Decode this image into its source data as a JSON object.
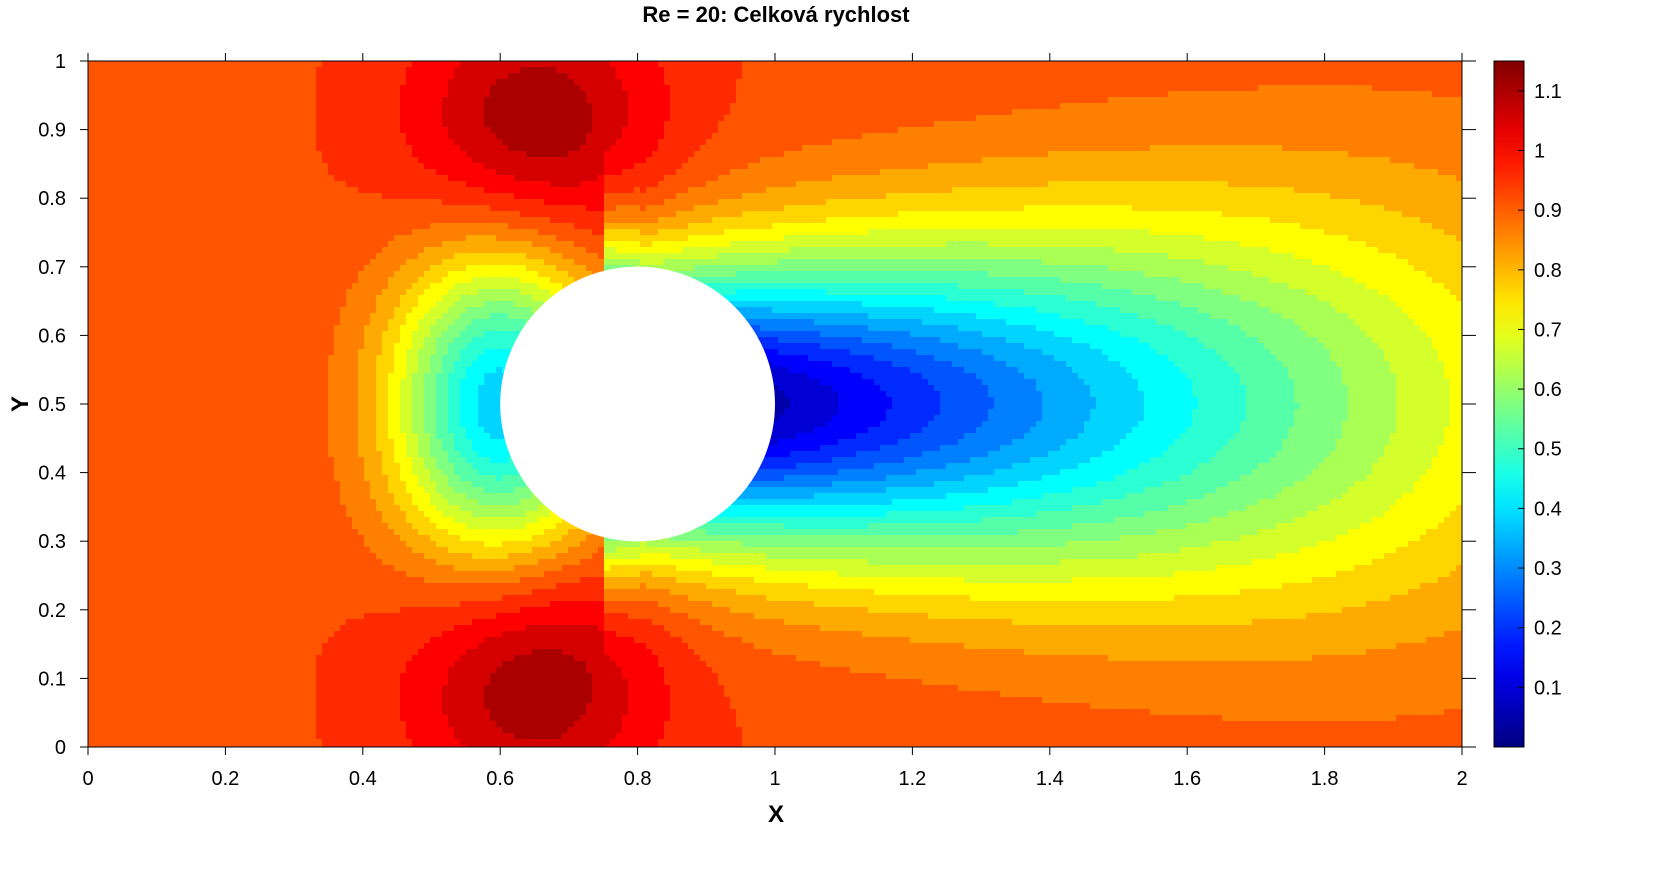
{
  "chart_data": {
    "type": "heatmap",
    "title": "Re = 20: Celková rychlost",
    "xlabel": "X",
    "ylabel": "Y",
    "xlim": [
      0,
      2
    ],
    "ylim": [
      0,
      1
    ],
    "x_ticks": [
      "0",
      "0.2",
      "0.4",
      "0.6",
      "0.8",
      "1",
      "1.2",
      "1.4",
      "1.6",
      "1.8",
      "2"
    ],
    "y_ticks": [
      "0",
      "0.1",
      "0.2",
      "0.3",
      "0.4",
      "0.5",
      "0.6",
      "0.7",
      "0.8",
      "0.9",
      "1"
    ],
    "colorbar": {
      "range": [
        0,
        1.15
      ],
      "ticks": [
        "0.1",
        "0.2",
        "0.3",
        "0.4",
        "0.5",
        "0.6",
        "0.7",
        "0.8",
        "0.9",
        "1",
        "1.1"
      ],
      "colormap": "jet"
    },
    "obstacle": {
      "shape": "circle",
      "center": [
        0.8,
        0.5
      ],
      "radius": 0.2
    },
    "field_features": {
      "inflow_speed": 0.95,
      "max_speed": 1.15,
      "max_speed_locations": [
        [
          0.65,
          0.9
        ],
        [
          0.65,
          0.1
        ]
      ],
      "wake_min_speed": 0.0,
      "wake_length_x": 1.25,
      "outflow_centerline_speed": 0.7
    },
    "contour_levels": 24,
    "grid": false
  }
}
